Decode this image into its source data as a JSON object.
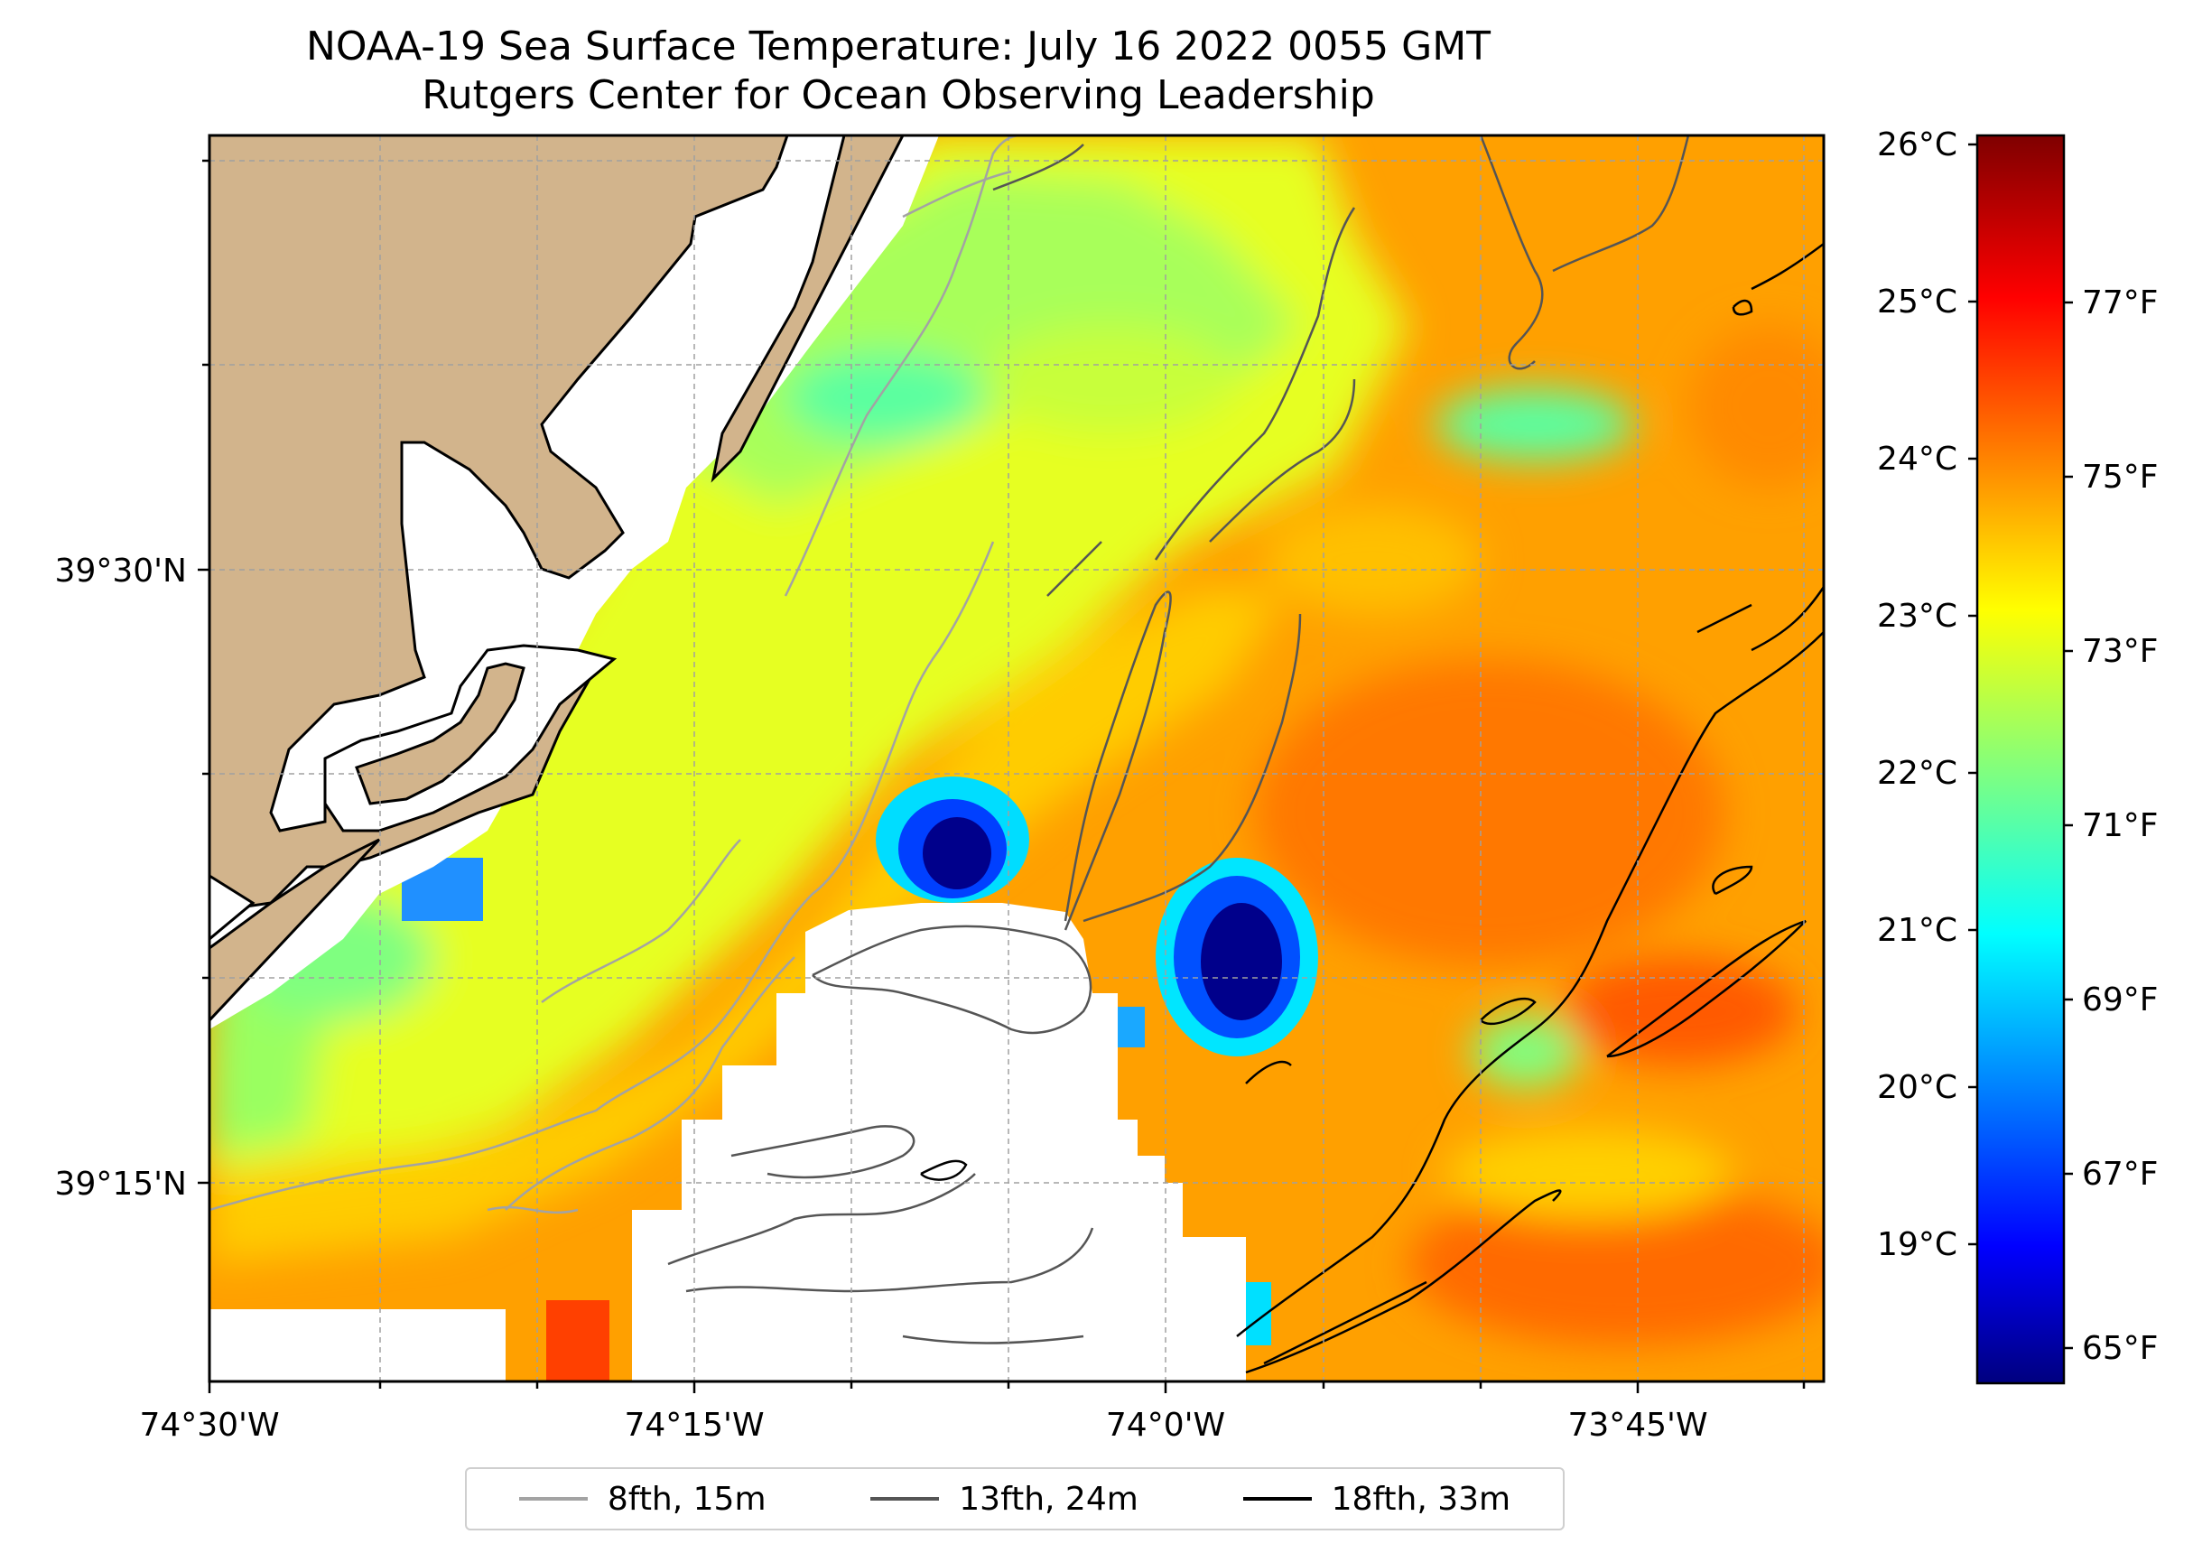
{
  "title": {
    "line1": "NOAA-19 Sea Surface Temperature: July 16 2022 0055 GMT",
    "line2": "Rutgers Center for Ocean Observing Leadership"
  },
  "axes": {
    "x_ticks": [
      "74°30'W",
      "74°15'W",
      "74°0'W",
      "73°45'W"
    ],
    "y_ticks": [
      "39°30'N",
      "39°15'N"
    ]
  },
  "colorbar": {
    "celsius_ticks": [
      "26°C",
      "25°C",
      "24°C",
      "23°C",
      "22°C",
      "21°C",
      "20°C",
      "19°C"
    ],
    "fahrenheit_ticks": [
      "77°F",
      "75°F",
      "73°F",
      "71°F",
      "69°F",
      "67°F",
      "65°F"
    ],
    "colormap": "jet"
  },
  "legend": {
    "items": [
      {
        "label": "8fth, 15m",
        "color": "#a3a3a3"
      },
      {
        "label": "13fth, 24m",
        "color": "#555555"
      },
      {
        "label": "18fth, 33m",
        "color": "#000000"
      }
    ]
  },
  "colors": {
    "land": "#d2b48c",
    "no_data": "#ffffff",
    "warm": "#ff8c00",
    "mid": "#ffff00",
    "cool": "#00ffff",
    "cold": "#00008b"
  }
}
